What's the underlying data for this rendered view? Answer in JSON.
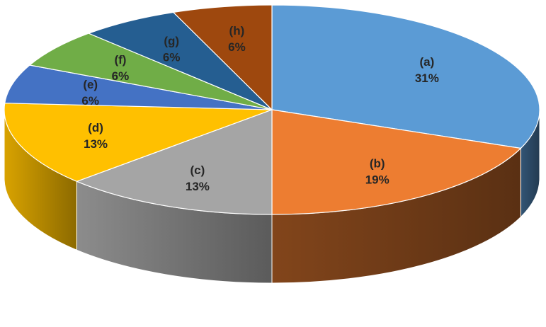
{
  "chart_data": {
    "type": "pie",
    "style": "3d",
    "title": "",
    "legend": "none",
    "slices": [
      {
        "label": "(a)",
        "value": 31,
        "value_label": "31%",
        "color": "#5b9bd5"
      },
      {
        "label": "(b)",
        "value": 19,
        "value_label": "19%",
        "color": "#ed7d31"
      },
      {
        "label": "(c)",
        "value": 13,
        "value_label": "13%",
        "color": "#a5a5a5"
      },
      {
        "label": "(d)",
        "value": 13,
        "value_label": "13%",
        "color": "#ffc000"
      },
      {
        "label": "(e)",
        "value": 6,
        "value_label": "6%",
        "color": "#4472c4"
      },
      {
        "label": "(f)",
        "value": 6,
        "value_label": "6%",
        "color": "#70ad47"
      },
      {
        "label": "(g)",
        "value": 6,
        "value_label": "6%",
        "color": "#255e91"
      },
      {
        "label": "(h)",
        "value": 6,
        "value_label": "6%",
        "color": "#9e480e"
      }
    ]
  }
}
